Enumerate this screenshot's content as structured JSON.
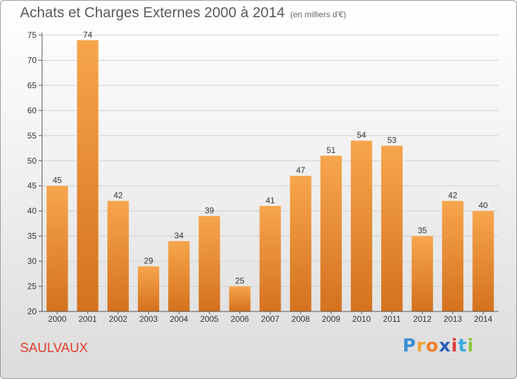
{
  "title": {
    "main": "Achats et Charges Externes 2000 à 2014",
    "unit": "(en milliers d'€)"
  },
  "place": "SAULVAUX",
  "logo": {
    "text": "Proxiti",
    "letters": [
      "P",
      "r",
      "o",
      "x",
      "i",
      "t",
      "i"
    ],
    "colors": [
      "#3a8fd6",
      "#f2a03a",
      "#f07d2a",
      "#2a5fb8",
      "#e23a3a",
      "#3aa8e0",
      "#8ac53a"
    ]
  },
  "colors": {
    "bar_light": "#f7a64d",
    "bar_dark": "#d4711e",
    "place": "#e03a2a"
  },
  "chart_data": {
    "type": "bar",
    "categories": [
      "2000",
      "2001",
      "2002",
      "2003",
      "2004",
      "2005",
      "2006",
      "2007",
      "2008",
      "2009",
      "2010",
      "2011",
      "2012",
      "2013",
      "2014"
    ],
    "values": [
      45,
      74,
      42,
      29,
      34,
      39,
      25,
      41,
      47,
      51,
      54,
      53,
      35,
      42,
      40
    ],
    "ylim": [
      20,
      75
    ],
    "yticks": [
      20,
      25,
      30,
      35,
      40,
      45,
      50,
      55,
      60,
      65,
      70,
      75
    ],
    "grid": true
  }
}
